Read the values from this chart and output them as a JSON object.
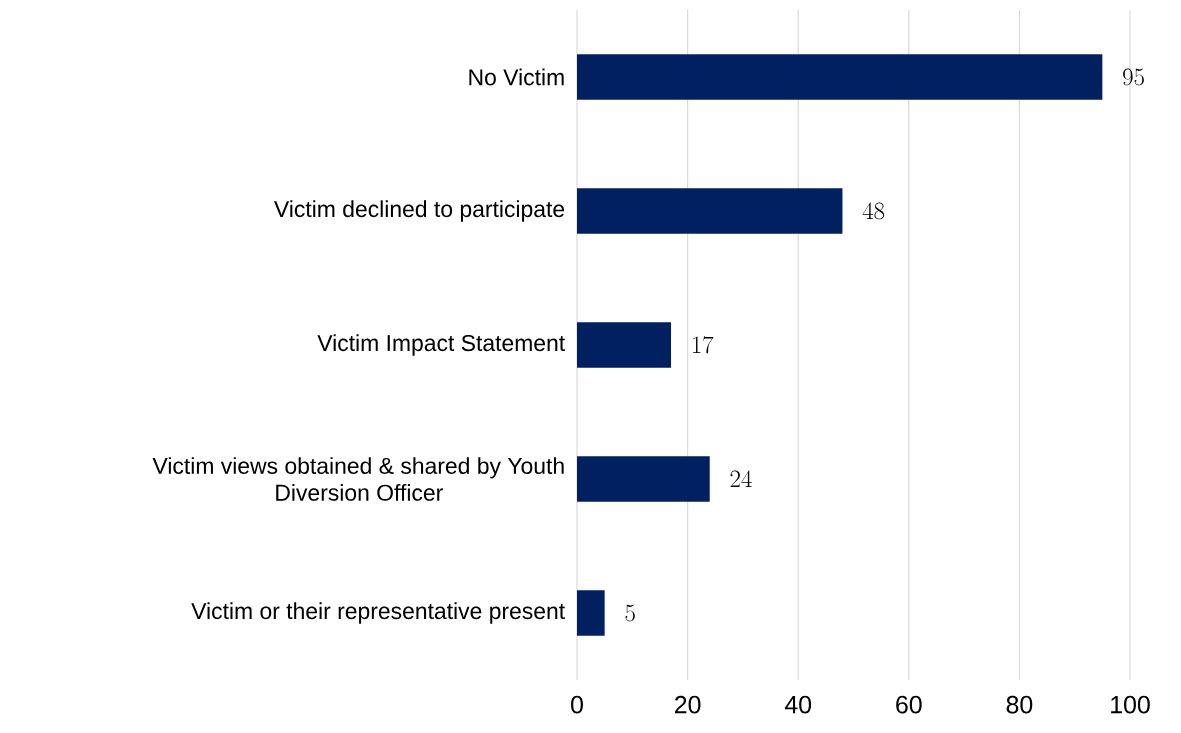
{
  "chart_data": {
    "type": "bar",
    "orientation": "horizontal",
    "categories": [
      "No Victim",
      "Victim declined to participate",
      "Victim Impact Statement",
      "Victim views obtained & shared by Youth Diversion Officer",
      "Victim or their representative present"
    ],
    "values": [
      95,
      48,
      17,
      24,
      5
    ],
    "color": "#002060",
    "xlim": [
      0,
      100
    ],
    "xticks": [
      0,
      20,
      40,
      60,
      80,
      100
    ],
    "grid": "x",
    "data_labels": true
  }
}
